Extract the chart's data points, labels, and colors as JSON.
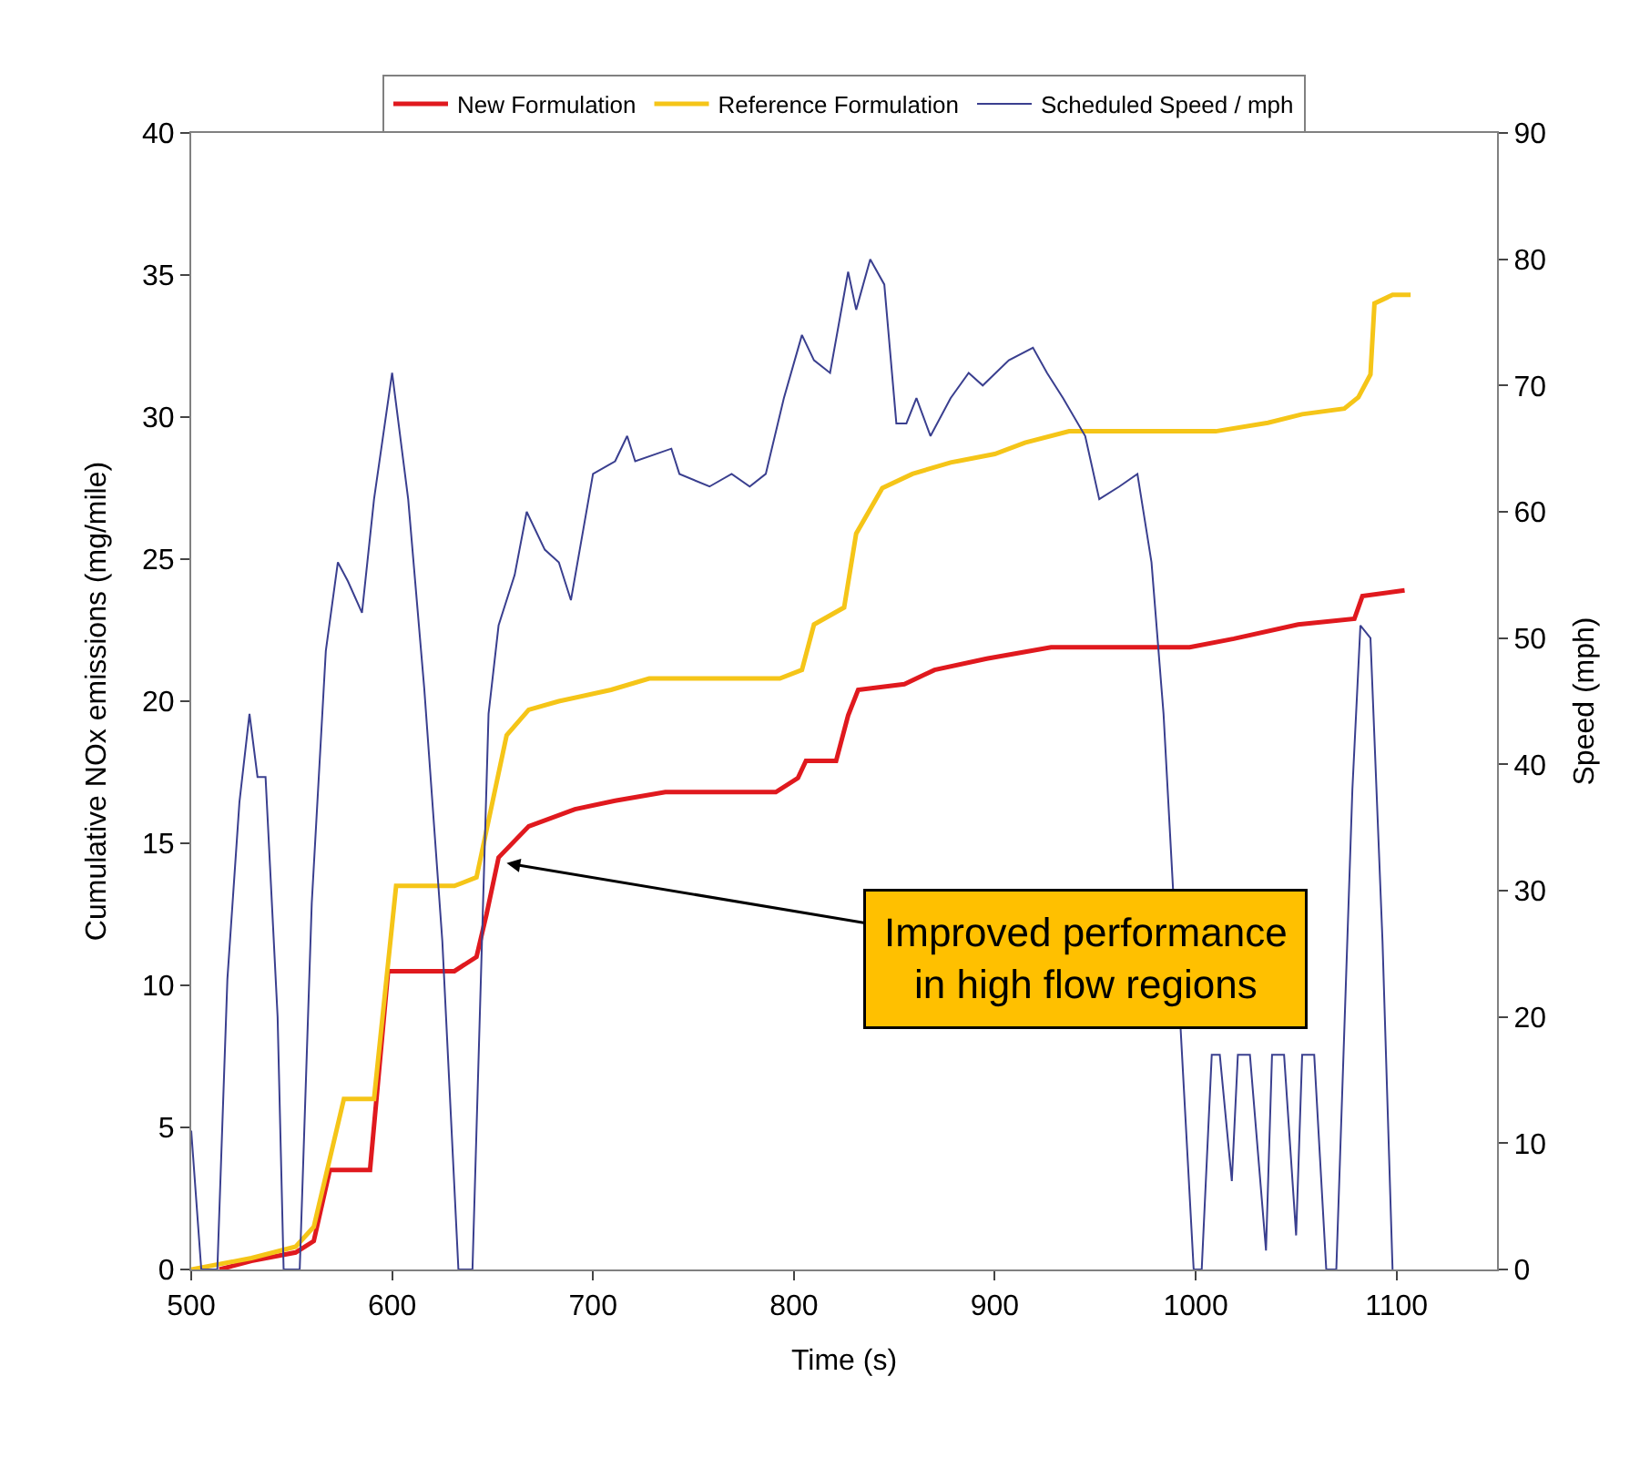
{
  "chart_data": {
    "type": "line",
    "xlabel": "Time (s)",
    "ylabel": "Cumulative NOx emissions (mg/mile)",
    "y2label": "Speed (mph)",
    "xlim": [
      500,
      1150
    ],
    "xticks": [
      500,
      600,
      700,
      800,
      900,
      1000,
      1100
    ],
    "ylim": [
      0,
      40
    ],
    "yticks": [
      0,
      5,
      10,
      15,
      20,
      25,
      30,
      35,
      40
    ],
    "y2lim": [
      0,
      90
    ],
    "y2ticks": [
      0,
      10,
      20,
      30,
      40,
      50,
      60,
      70,
      80,
      90
    ],
    "legend": "top",
    "marker": "none",
    "line_style": "solid",
    "series": [
      {
        "name": "New Formulation",
        "color": "#e0191e",
        "x": [
          514,
          530,
          552,
          561,
          569,
          589,
          598,
          631,
          642,
          647,
          653,
          668,
          691,
          711,
          736,
          791,
          802,
          806,
          821,
          827,
          832,
          855,
          870,
          896,
          928,
          997,
          1019,
          1051,
          1079,
          1083,
          1104
        ],
        "values": [
          0,
          0.3,
          0.6,
          1.0,
          3.5,
          3.5,
          10.5,
          10.5,
          11,
          12.5,
          14.5,
          15.6,
          16.2,
          16.5,
          16.8,
          16.8,
          17.3,
          17.9,
          17.9,
          19.5,
          20.4,
          20.6,
          21.1,
          21.5,
          21.9,
          21.9,
          22.2,
          22.7,
          22.9,
          23.7,
          23.9
        ]
      },
      {
        "name": "Reference Formulation",
        "color": "#f5c518",
        "x": [
          500,
          530,
          552,
          561,
          576,
          591,
          602,
          631,
          642,
          657,
          668,
          683,
          709,
          728,
          793,
          804,
          810,
          825,
          831,
          844,
          859,
          878,
          900,
          915,
          937,
          983,
          1010,
          1036,
          1053,
          1074,
          1081,
          1087,
          1089,
          1098,
          1107
        ],
        "values": [
          0,
          0.4,
          0.8,
          1.5,
          6.0,
          6.0,
          13.5,
          13.5,
          13.8,
          18.8,
          19.7,
          20.0,
          20.4,
          20.8,
          20.8,
          21.1,
          22.7,
          23.3,
          25.9,
          27.5,
          28.0,
          28.4,
          28.7,
          29.1,
          29.5,
          29.5,
          29.5,
          29.8,
          30.1,
          30.3,
          30.7,
          31.5,
          34.0,
          34.3,
          34.3
        ]
      },
      {
        "name": "Scheduled Speed / mph",
        "color": "#3a3f8f",
        "axis": "y2",
        "x": [
          500,
          505,
          513,
          518,
          524,
          529,
          533,
          537,
          543,
          546,
          554,
          560,
          567,
          573,
          578,
          585,
          591,
          600,
          608,
          616,
          625,
          633,
          640,
          648,
          653,
          661,
          667,
          676,
          683,
          689,
          700,
          711,
          717,
          721,
          739,
          743,
          758,
          769,
          778,
          786,
          795,
          804,
          810,
          818,
          827,
          831,
          838,
          845,
          851,
          856,
          861,
          868,
          878,
          887,
          894,
          907,
          919,
          926,
          934,
          945,
          952,
          962,
          971,
          978,
          984,
          991,
          999,
          1003,
          1008,
          1012,
          1018,
          1021,
          1027,
          1035,
          1038,
          1044,
          1050,
          1053,
          1059,
          1065,
          1070,
          1078,
          1082,
          1087,
          1093,
          1098
        ],
        "values": [
          11,
          0,
          0,
          23,
          37,
          44,
          39,
          39,
          20,
          0,
          0,
          29,
          49,
          56,
          54.5,
          52,
          61,
          71,
          61,
          46,
          26,
          0,
          0,
          44,
          51,
          55,
          60,
          57,
          56,
          53,
          63,
          64,
          66,
          64,
          65,
          63,
          62,
          63,
          62,
          63,
          69,
          74,
          72,
          71,
          79,
          76,
          80,
          78,
          67,
          67,
          69,
          66,
          69,
          71,
          70,
          72,
          73,
          71,
          69,
          66,
          61,
          62,
          63,
          56,
          44,
          null,
          0,
          0,
          17,
          17,
          7,
          17,
          17,
          1.5,
          17,
          17,
          2.7,
          17,
          17,
          0,
          0,
          38,
          51,
          50,
          26,
          0
        ]
      }
    ],
    "annotations": [
      {
        "text": "Improved performance\nin high flow regions",
        "x": 657,
        "y": 14.3
      }
    ]
  }
}
